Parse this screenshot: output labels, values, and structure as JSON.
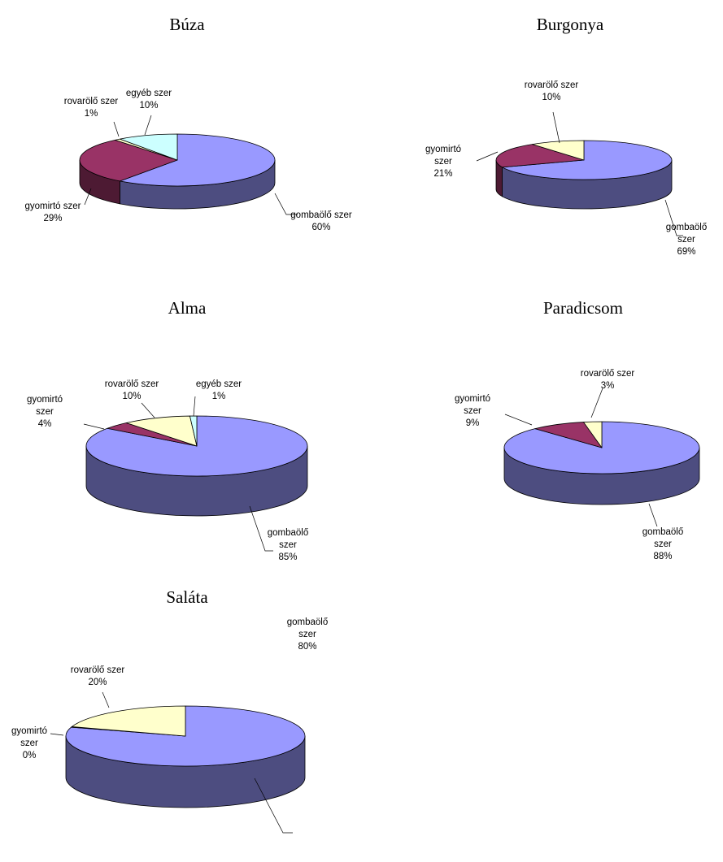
{
  "chart_data": [
    {
      "type": "pie",
      "title": "Búza",
      "slices": [
        {
          "label": [
            "gombaölő szer"
          ],
          "pct": "60%",
          "value": 60,
          "color": "#9999ff"
        },
        {
          "label": [
            "gyomirtó szer"
          ],
          "pct": "29%",
          "value": 29,
          "color": "#993366"
        },
        {
          "label": [
            "rovarölő szer"
          ],
          "pct": "1%",
          "value": 1,
          "color": "#ffffcc"
        },
        {
          "label": [
            "egyéb szer"
          ],
          "pct": "10%",
          "value": 10,
          "color": "#ccffff"
        }
      ]
    },
    {
      "type": "pie",
      "title": "Burgonya",
      "slices": [
        {
          "label": [
            "gombaölő",
            "szer"
          ],
          "pct": "69%",
          "value": 69,
          "color": "#9999ff"
        },
        {
          "label": [
            "gyomirtó",
            "szer"
          ],
          "pct": "21%",
          "value": 21,
          "color": "#993366"
        },
        {
          "label": [
            "rovarölő szer"
          ],
          "pct": "10%",
          "value": 10,
          "color": "#ffffcc"
        }
      ]
    },
    {
      "type": "pie",
      "title": "Alma",
      "slices": [
        {
          "label": [
            "gombaölő",
            "szer"
          ],
          "pct": "85%",
          "value": 85,
          "color": "#9999ff"
        },
        {
          "label": [
            "gyomirtó",
            "szer"
          ],
          "pct": "4%",
          "value": 4,
          "color": "#993366"
        },
        {
          "label": [
            "rovarölő szer"
          ],
          "pct": "10%",
          "value": 10,
          "color": "#ffffcc"
        },
        {
          "label": [
            "egyéb szer"
          ],
          "pct": "1%",
          "value": 1,
          "color": "#ccffff"
        }
      ]
    },
    {
      "type": "pie",
      "title": "Paradicsom",
      "slices": [
        {
          "label": [
            "gombaölő",
            "szer"
          ],
          "pct": "88%",
          "value": 88,
          "color": "#9999ff"
        },
        {
          "label": [
            "gyomirtó",
            "szer"
          ],
          "pct": "9%",
          "value": 9,
          "color": "#993366"
        },
        {
          "label": [
            "rovarölő szer"
          ],
          "pct": "3%",
          "value": 3,
          "color": "#ffffcc"
        }
      ]
    },
    {
      "type": "pie",
      "title": "Saláta",
      "slices": [
        {
          "label": [
            "gombaölő",
            "szer"
          ],
          "pct": "80%",
          "value": 80,
          "color": "#9999ff"
        },
        {
          "label": [
            "gyomirtó",
            "szer"
          ],
          "pct": "0%",
          "value": 0.3,
          "color": "#993366"
        },
        {
          "label": [
            "rovarölő szer"
          ],
          "pct": "20%",
          "value": 20,
          "color": "#ffffcc"
        }
      ]
    }
  ]
}
